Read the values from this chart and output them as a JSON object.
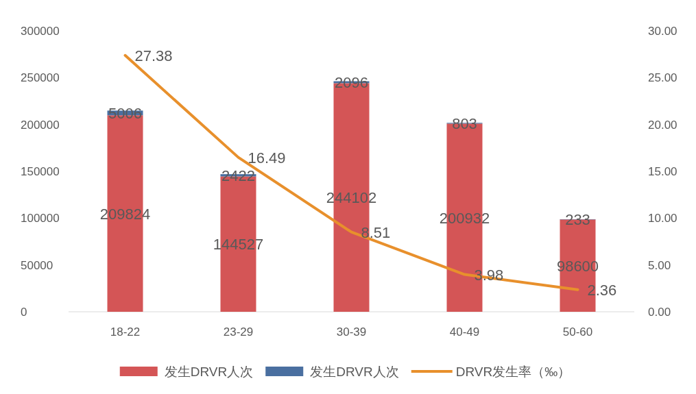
{
  "chart_data": {
    "type": "bar",
    "stacked": true,
    "categories": [
      "18-22",
      "23-29",
      "30-39",
      "40-49",
      "50-60"
    ],
    "series": [
      {
        "name": "发生DRVR人次",
        "color": "#d45556",
        "values": [
          209824,
          144527,
          244102,
          200932,
          98600
        ]
      },
      {
        "name": "发生DRVR人次",
        "color": "#4a6fa0",
        "values": [
          5006,
          2422,
          2096,
          803,
          233
        ]
      },
      {
        "name": "DRVR发生率（‰）",
        "type": "line",
        "axis": "y2",
        "color": "#e8902c",
        "values": [
          27.38,
          16.49,
          8.51,
          3.98,
          2.36
        ]
      }
    ],
    "ylim": [
      0,
      300000
    ],
    "yticks": [
      0,
      50000,
      100000,
      150000,
      200000,
      250000,
      300000
    ],
    "y2lim": [
      0,
      30
    ],
    "y2ticks": [
      {
        "value": 0,
        "label": "0.00"
      },
      {
        "value": 5,
        "label": "5.00"
      },
      {
        "value": 10,
        "label": "10.00"
      },
      {
        "value": 15,
        "label": "15.00"
      },
      {
        "value": 20,
        "label": "20.00"
      },
      {
        "value": 25,
        "label": "25.00"
      },
      {
        "value": 30,
        "label": "30.00"
      }
    ],
    "data_labels": true,
    "legend": "bottom",
    "grid": false
  }
}
